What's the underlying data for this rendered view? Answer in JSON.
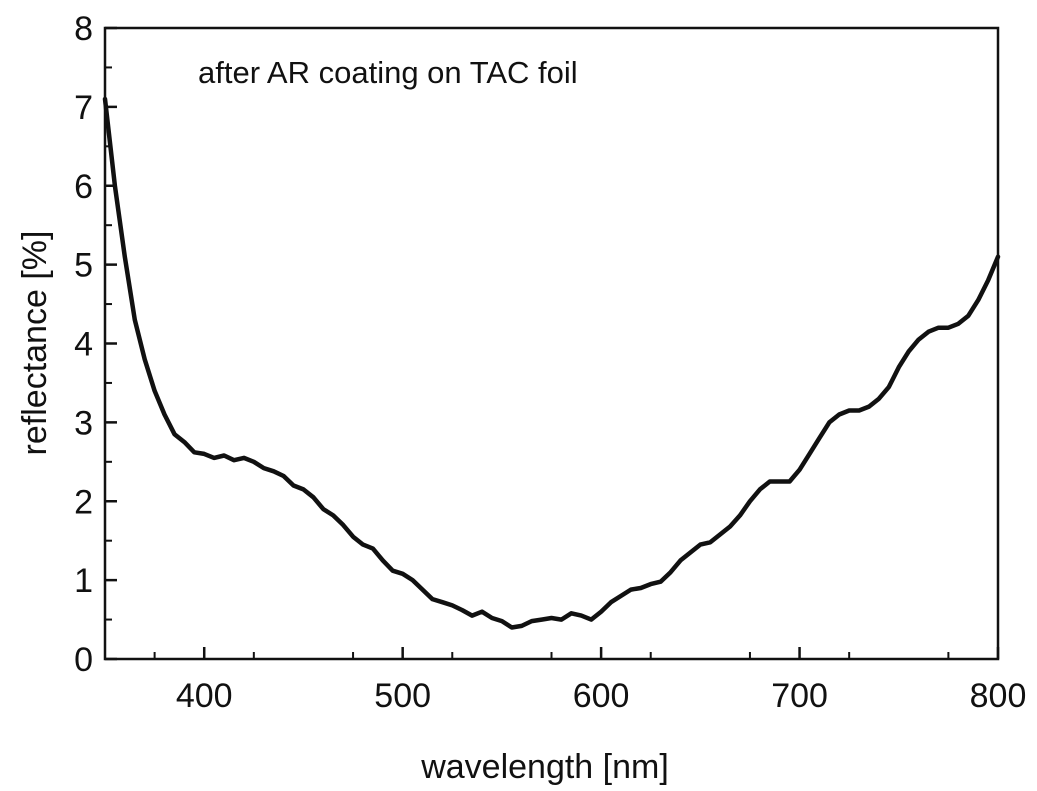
{
  "chart_data": {
    "type": "line",
    "title": "",
    "annotation": "after AR coating on TAC foil",
    "xlabel": "wavelength [nm]",
    "ylabel": "reflectance [%]",
    "xlim": [
      350,
      800
    ],
    "ylim": [
      0,
      8
    ],
    "xticks": [
      "400",
      "500",
      "600",
      "700",
      "800"
    ],
    "xtick_values": [
      400,
      500,
      600,
      700,
      800
    ],
    "yticks": [
      "0",
      "1",
      "2",
      "3",
      "4",
      "5",
      "6",
      "7",
      "8"
    ],
    "ytick_values": [
      0,
      1,
      2,
      3,
      4,
      5,
      6,
      7,
      8
    ],
    "grid": false,
    "line_color": "#111111",
    "series": [
      {
        "x": [
          350,
          355,
          360,
          365,
          370,
          375,
          380,
          385,
          390,
          395,
          400,
          405,
          410,
          415,
          420,
          425,
          430,
          435,
          440,
          445,
          450,
          455,
          460,
          465,
          470,
          475,
          480,
          485,
          490,
          495,
          500,
          505,
          510,
          515,
          520,
          525,
          530,
          535,
          540,
          545,
          550,
          555,
          560,
          565,
          570,
          575,
          580,
          585,
          590,
          595,
          600,
          605,
          610,
          615,
          620,
          625,
          630,
          635,
          640,
          645,
          650,
          655,
          660,
          665,
          670,
          675,
          680,
          685,
          690,
          695,
          700,
          705,
          710,
          715,
          720,
          725,
          730,
          735,
          740,
          745,
          750,
          755,
          760,
          765,
          770,
          775,
          780,
          785,
          790,
          795,
          800
        ],
        "y": [
          7.1,
          6.0,
          5.1,
          4.3,
          3.8,
          3.4,
          3.1,
          2.85,
          2.75,
          2.62,
          2.6,
          2.55,
          2.58,
          2.52,
          2.55,
          2.5,
          2.42,
          2.38,
          2.32,
          2.2,
          2.15,
          2.05,
          1.9,
          1.82,
          1.7,
          1.55,
          1.45,
          1.4,
          1.25,
          1.12,
          1.08,
          1.0,
          0.88,
          0.76,
          0.72,
          0.68,
          0.62,
          0.55,
          0.6,
          0.52,
          0.48,
          0.4,
          0.42,
          0.48,
          0.5,
          0.52,
          0.5,
          0.58,
          0.55,
          0.5,
          0.6,
          0.72,
          0.8,
          0.88,
          0.9,
          0.95,
          0.98,
          1.1,
          1.25,
          1.35,
          1.45,
          1.48,
          1.58,
          1.68,
          1.82,
          2.0,
          2.15,
          2.25,
          2.25,
          2.25,
          2.4,
          2.6,
          2.8,
          3.0,
          3.1,
          3.15,
          3.15,
          3.2,
          3.3,
          3.45,
          3.7,
          3.9,
          4.05,
          4.15,
          4.2,
          4.2,
          4.25,
          4.35,
          4.55,
          4.8,
          5.1
        ]
      }
    ]
  }
}
